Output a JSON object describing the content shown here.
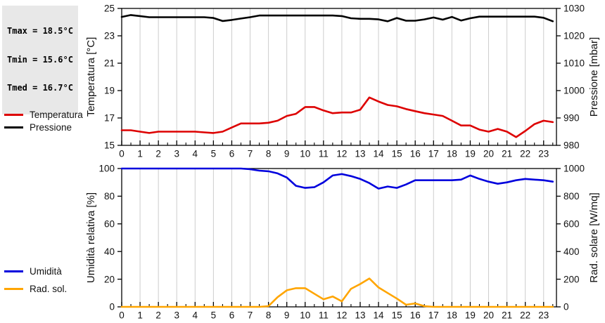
{
  "stats_box": {
    "lines": [
      "Tmax = 18.5°C",
      "Tmin = 15.6°C",
      "Tmed = 16.7°C"
    ]
  },
  "colors": {
    "background": "#ffffff",
    "stats_bg": "#e8e8e8",
    "grid": "#cdcdcd",
    "frame": "#000000"
  },
  "legends": {
    "top": [
      {
        "label": "Temperatura",
        "color": "#dd0000"
      },
      {
        "label": "Pressione",
        "color": "#000000"
      }
    ],
    "bottom": [
      {
        "label": "Umidità",
        "color": "#0000dd"
      },
      {
        "label": "Rad. sol.",
        "color": "#ffa500"
      }
    ]
  },
  "chart_data": [
    {
      "name": "temperature-pressure-chart",
      "type": "line",
      "grid": "vertical-hourly",
      "x_range": [
        0,
        23.7
      ],
      "x_minor_step": 0.5,
      "x_ticks": [
        0,
        1,
        2,
        3,
        4,
        5,
        6,
        7,
        8,
        9,
        10,
        11,
        12,
        13,
        14,
        15,
        16,
        17,
        18,
        19,
        20,
        21,
        22,
        23
      ],
      "x_hours": [
        0,
        0.5,
        1,
        1.5,
        2,
        2.5,
        3,
        3.5,
        4,
        4.5,
        5,
        5.5,
        6,
        6.5,
        7,
        7.5,
        8,
        8.5,
        9,
        9.5,
        10,
        10.5,
        11,
        11.5,
        12,
        12.5,
        13,
        13.5,
        14,
        14.5,
        15,
        15.5,
        16,
        16.5,
        17,
        17.5,
        18,
        18.5,
        19,
        19.5,
        20,
        20.5,
        21,
        21.5,
        22,
        22.5,
        23,
        23.5
      ],
      "left_axis": {
        "label": "Temperatura [°C]",
        "range": [
          15,
          25
        ],
        "ticks": [
          15,
          17,
          19,
          21,
          23,
          25
        ]
      },
      "right_axis": {
        "label": "Pressione [mbar]",
        "range": [
          980,
          1030
        ],
        "ticks": [
          980,
          990,
          1000,
          1010,
          1020,
          1030
        ]
      },
      "series": [
        {
          "name": "Temperatura",
          "data_name": "temperatura-line",
          "axis": "left",
          "color": "#dd0000",
          "values": [
            16.1,
            16.1,
            16.0,
            15.9,
            16.0,
            16.0,
            16.0,
            16.0,
            16.0,
            15.95,
            15.9,
            16.0,
            16.3,
            16.6,
            16.6,
            16.6,
            16.65,
            16.8,
            17.15,
            17.3,
            17.8,
            17.8,
            17.55,
            17.35,
            17.4,
            17.4,
            17.6,
            18.5,
            18.2,
            17.95,
            17.85,
            17.65,
            17.5,
            17.35,
            17.25,
            17.15,
            16.8,
            16.45,
            16.45,
            16.15,
            16.0,
            16.2,
            16.0,
            15.6,
            16.05,
            16.55,
            16.8,
            16.7
          ]
        },
        {
          "name": "Pressione",
          "data_name": "pressione-line",
          "axis": "right",
          "color": "#000000",
          "values": [
            1026.9,
            1027.6,
            1027.2,
            1026.8,
            1026.8,
            1026.8,
            1026.8,
            1026.8,
            1026.8,
            1026.8,
            1026.5,
            1025.4,
            1025.8,
            1026.3,
            1026.8,
            1027.4,
            1027.4,
            1027.4,
            1027.4,
            1027.4,
            1027.4,
            1027.4,
            1027.4,
            1027.4,
            1027.2,
            1026.4,
            1026.2,
            1026.2,
            1026.0,
            1025.3,
            1026.5,
            1025.5,
            1025.5,
            1026.0,
            1026.7,
            1025.9,
            1026.9,
            1025.6,
            1026.4,
            1027.0,
            1027.0,
            1027.0,
            1027.0,
            1027.0,
            1027.0,
            1027.0,
            1026.6,
            1025.3
          ]
        }
      ]
    },
    {
      "name": "humidity-radiation-chart",
      "type": "line",
      "grid": "vertical-hourly",
      "x_range": [
        0,
        23.7
      ],
      "x_minor_step": 0.5,
      "x_ticks": [
        0,
        1,
        2,
        3,
        4,
        5,
        6,
        7,
        8,
        9,
        10,
        11,
        12,
        13,
        14,
        15,
        16,
        17,
        18,
        19,
        20,
        21,
        22,
        23
      ],
      "x_hours": [
        0,
        0.5,
        1,
        1.5,
        2,
        2.5,
        3,
        3.5,
        4,
        4.5,
        5,
        5.5,
        6,
        6.5,
        7,
        7.5,
        8,
        8.5,
        9,
        9.5,
        10,
        10.5,
        11,
        11.5,
        12,
        12.5,
        13,
        13.5,
        14,
        14.5,
        15,
        15.5,
        16,
        16.5,
        17,
        17.5,
        18,
        18.5,
        19,
        19.5,
        20,
        20.5,
        21,
        21.5,
        22,
        22.5,
        23,
        23.5
      ],
      "left_axis": {
        "label": "Umidità relativa [%]",
        "range": [
          0,
          100
        ],
        "ticks": [
          0,
          20,
          40,
          60,
          80,
          100
        ]
      },
      "right_axis": {
        "label": "Rad. solare [W/mq]",
        "range": [
          0,
          1000
        ],
        "ticks": [
          0,
          200,
          400,
          600,
          800,
          1000
        ]
      },
      "series": [
        {
          "name": "Umidità",
          "data_name": "umidita-line",
          "axis": "left",
          "color": "#0000dd",
          "values": [
            100,
            100,
            100,
            100,
            100,
            100,
            100,
            100,
            100,
            100,
            100,
            100,
            100,
            100,
            99.5,
            98.5,
            98,
            96.5,
            93.5,
            87.5,
            86,
            86.5,
            90,
            95,
            96,
            94.5,
            92.5,
            89.5,
            85.5,
            87,
            86,
            88.5,
            91.5,
            91.5,
            91.5,
            91.5,
            91.5,
            92,
            95,
            92.5,
            90.5,
            89,
            90,
            91.5,
            92.5,
            92,
            91.5,
            90.5
          ]
        },
        {
          "name": "Rad. sol.",
          "data_name": "radiazione-line",
          "axis": "right",
          "color": "#ffa500",
          "values": [
            0,
            0,
            0,
            0,
            0,
            0,
            0,
            0,
            0,
            0,
            0,
            0,
            0,
            0,
            0,
            0,
            5,
            70,
            120,
            135,
            135,
            95,
            55,
            75,
            40,
            130,
            165,
            205,
            140,
            100,
            60,
            15,
            25,
            5,
            0,
            0,
            0,
            0,
            0,
            0,
            0,
            0,
            0,
            0,
            0,
            0,
            0,
            0
          ]
        }
      ]
    }
  ]
}
